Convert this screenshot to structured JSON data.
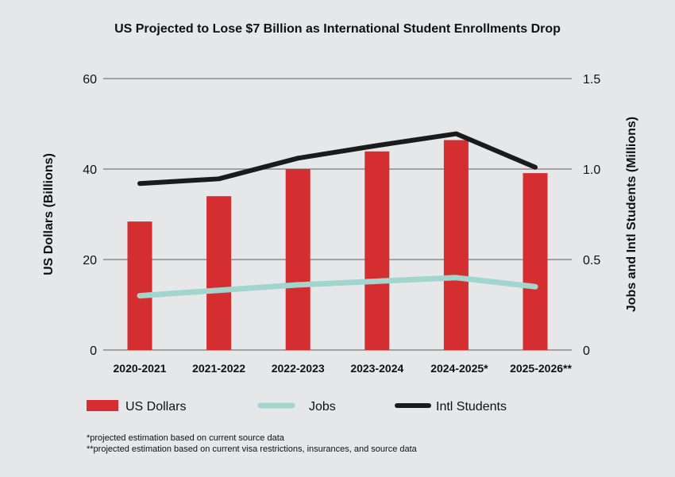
{
  "chart_data": {
    "type": "bar",
    "title": "US Projected to Lose $7 Billion as International Student Enrollments Drop",
    "categories": [
      "2020-2021",
      "2021-2022",
      "2022-2023",
      "2023-2024",
      "2024-2025*",
      "2025-2026**"
    ],
    "ylabel": "US Dollars (Billions)",
    "y2label": "Jobs and Intl Students (Millions)",
    "ylim": [
      0,
      60
    ],
    "y2lim": [
      0,
      1.5
    ],
    "yticks": [
      "0",
      "20",
      "40",
      "60"
    ],
    "y2ticks": [
      "0",
      "0.5",
      "1.0",
      "1.5"
    ],
    "grid": true,
    "legend_placement": "bottom",
    "series": [
      {
        "name": "US Dollars",
        "type": "bar",
        "axis": "left",
        "color": "#d42e31",
        "values": [
          28.4,
          34.0,
          40.0,
          43.9,
          46.4,
          39.1
        ]
      },
      {
        "name": "Jobs",
        "type": "line",
        "axis": "right",
        "color": "#a3d5cf",
        "values": [
          0.3,
          0.33,
          0.36,
          0.38,
          0.4,
          0.35
        ]
      },
      {
        "name": "Intl Students",
        "type": "line",
        "axis": "right",
        "color": "#1b1b1b",
        "values": [
          0.92,
          0.946,
          1.06,
          1.13,
          1.195,
          1.01
        ]
      }
    ],
    "footnotes": [
      "*projected estimation based on current source data",
      "**projected estimation based on current visa restrictions, insurances, and source data"
    ]
  }
}
